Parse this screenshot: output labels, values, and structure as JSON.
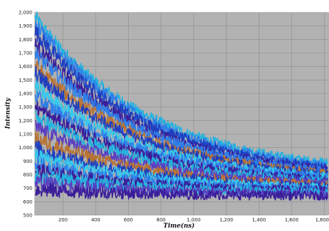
{
  "chart_data": {
    "type": "line",
    "title": "",
    "xlabel": "Time(ns)",
    "ylabel": "Intensity",
    "xlim": [
      25,
      1820
    ],
    "ylim": [
      500,
      2000
    ],
    "x_ticks": [
      200,
      400,
      600,
      800,
      1000,
      1200,
      1400,
      1600,
      1800
    ],
    "x_tick_labels": [
      "200",
      "400",
      "600",
      "800",
      "1,000",
      "1,200",
      "1,400",
      "1,600",
      "1,800"
    ],
    "y_ticks": [
      500,
      600,
      700,
      800,
      900,
      1000,
      1100,
      1200,
      1300,
      1400,
      1500,
      1600,
      1700,
      1800,
      1900,
      2000
    ],
    "y_tick_labels": [
      "500",
      "600",
      "700",
      "800",
      "900",
      "1,000",
      "1,100",
      "1,200",
      "1,300",
      "1,400",
      "1,500",
      "1,600",
      "1,700",
      "1,800",
      "1,900",
      "2,000"
    ],
    "grid": true,
    "colors": {
      "plot_background": "#b2b2b2",
      "grid": "#8a8a8a",
      "palette": [
        "#1f3fbf",
        "#2f7fe8",
        "#23b3e0",
        "#35c9ec",
        "#b87333",
        "#3a1e9a",
        "#5a3fc0"
      ]
    },
    "series_note_removed": true,
    "series": [
      {
        "start": 1960,
        "end": 800,
        "color": "#23b3e0"
      },
      {
        "start": 1920,
        "end": 780,
        "color": "#2f7fe8"
      },
      {
        "start": 1860,
        "end": 770,
        "color": "#1f3fbf"
      },
      {
        "start": 1760,
        "end": 760,
        "color": "#3a1e9a"
      },
      {
        "start": 1700,
        "end": 755,
        "color": "#2f7fe8"
      },
      {
        "start": 1600,
        "end": 745,
        "color": "#b87333"
      },
      {
        "start": 1550,
        "end": 740,
        "color": "#1f3fbf"
      },
      {
        "start": 1450,
        "end": 735,
        "color": "#35c9ec"
      },
      {
        "start": 1380,
        "end": 730,
        "color": "#2f7fe8"
      },
      {
        "start": 1300,
        "end": 720,
        "color": "#3a1e9a"
      },
      {
        "start": 1230,
        "end": 715,
        "color": "#23b3e0"
      },
      {
        "start": 1150,
        "end": 705,
        "color": "#5a3fc0"
      },
      {
        "start": 1070,
        "end": 700,
        "color": "#b87333"
      },
      {
        "start": 1000,
        "end": 690,
        "color": "#1f3fbf"
      },
      {
        "start": 940,
        "end": 685,
        "color": "#35c9ec"
      },
      {
        "start": 880,
        "end": 675,
        "color": "#2f7fe8"
      },
      {
        "start": 830,
        "end": 670,
        "color": "#3a1e9a"
      },
      {
        "start": 790,
        "end": 660,
        "color": "#23b3e0"
      },
      {
        "start": 740,
        "end": 650,
        "color": "#5a3fc0"
      },
      {
        "start": 690,
        "end": 640,
        "color": "#3a1e9a"
      }
    ],
    "decay_constant_ns": 700
  }
}
